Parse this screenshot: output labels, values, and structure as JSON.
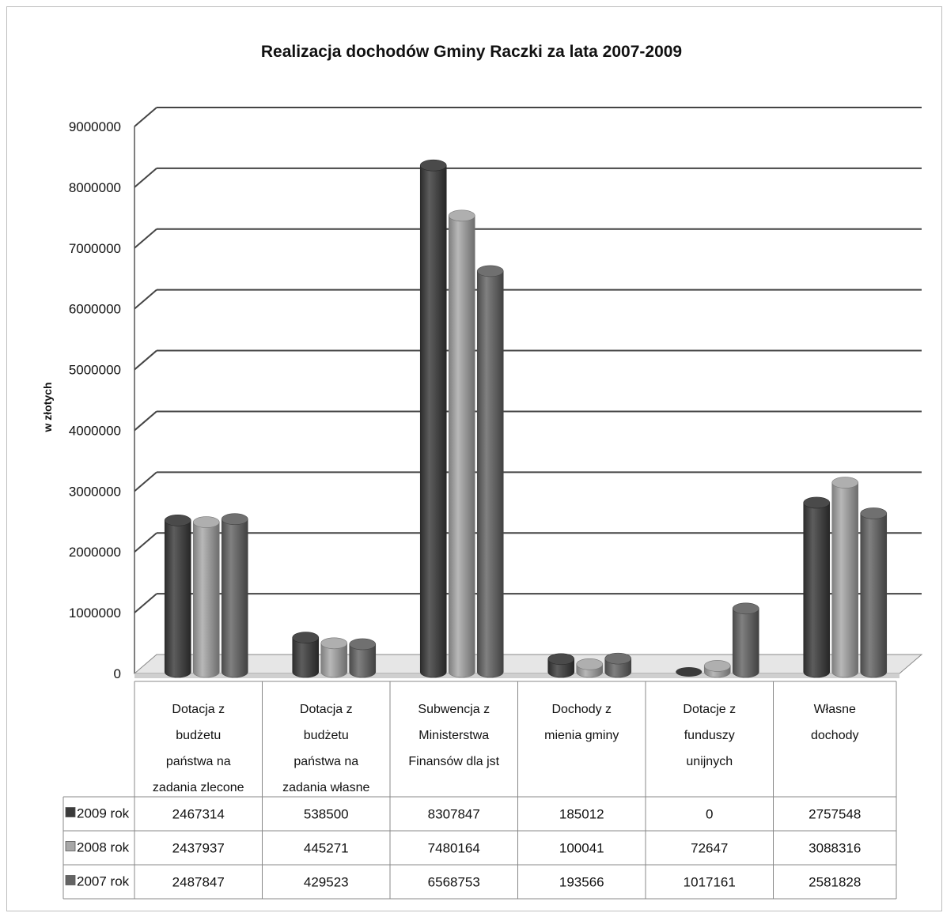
{
  "chart_data": {
    "type": "bar",
    "title": "Realizacja dochodów Gminy Raczki za lata 2007-2009",
    "ylabel": "w złotych",
    "xlabel": "",
    "ylim": [
      0,
      9000000
    ],
    "yticks": [
      "0",
      "1000000",
      "2000000",
      "3000000",
      "4000000",
      "5000000",
      "6000000",
      "7000000",
      "8000000",
      "9000000"
    ],
    "grid": true,
    "legend": "data-table-left",
    "categories": [
      [
        "Dotacja z",
        "budżetu",
        "państwa na",
        "zadania zlecone"
      ],
      [
        "Dotacja z",
        "budżetu",
        "państwa na",
        "zadania własne"
      ],
      [
        "Subwencja z",
        "Ministerstwa",
        "Finansów dla jst"
      ],
      [
        "Dochody z",
        "mienia gminy"
      ],
      [
        "Dotacje z",
        "funduszy",
        "unijnych"
      ],
      [
        "Własne",
        "dochody"
      ]
    ],
    "series": [
      {
        "name": "2009 rok",
        "color": "#3a3a3a",
        "values": [
          2467314,
          538500,
          8307847,
          185012,
          0,
          2757548
        ],
        "labels": [
          "2467314",
          "538500",
          "8307847",
          "185012",
          "0",
          "2757548"
        ]
      },
      {
        "name": "2008 rok",
        "color": "#a8a8a8",
        "values": [
          2437937,
          445271,
          7480164,
          100041,
          72647,
          3088316
        ],
        "labels": [
          "2437937",
          "445271",
          "7480164",
          "100041",
          "72647",
          "3088316"
        ]
      },
      {
        "name": "2007 rok",
        "color": "#646464",
        "values": [
          2487847,
          429523,
          6568753,
          193566,
          1017161,
          2581828
        ],
        "labels": [
          "2487847",
          "429523",
          "6568753",
          "193566",
          "1017161",
          "2581828"
        ]
      }
    ]
  }
}
